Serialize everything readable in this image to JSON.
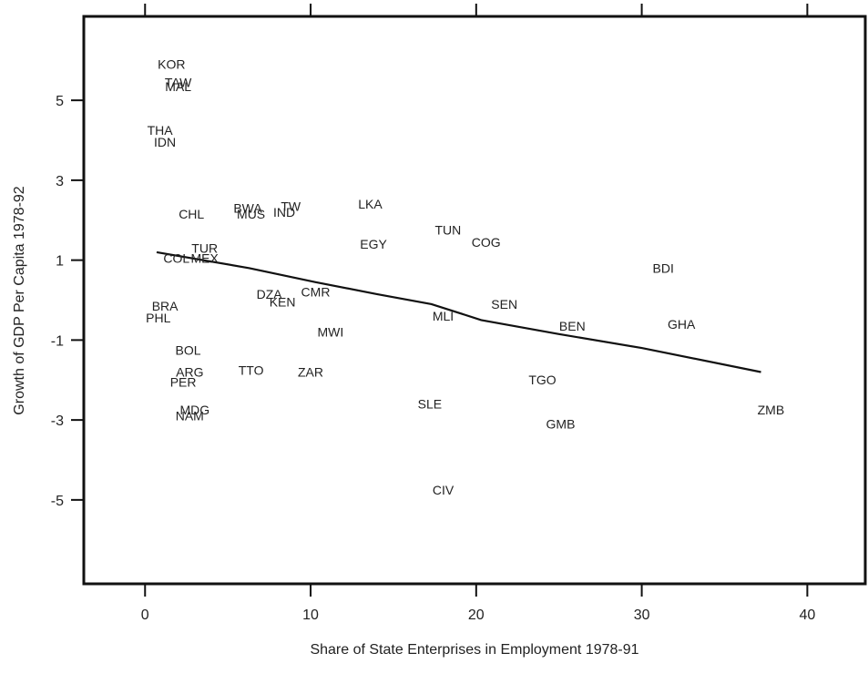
{
  "chart_data": {
    "type": "scatter",
    "title": "",
    "xlabel": "Share of State Enterprises in Employment 1978-91",
    "ylabel": "Growth of GDP Per Capita 1978-92",
    "xlim": [
      -3.7,
      43.5
    ],
    "ylim": [
      -7.1,
      7.1
    ],
    "xticks": [
      0,
      10,
      20,
      30,
      40
    ],
    "yticks": [
      5,
      3,
      1,
      -1,
      -3,
      -5
    ],
    "grid": false,
    "legend": "none",
    "points": [
      {
        "label": "KOR",
        "x": 1.6,
        "y": 5.9
      },
      {
        "label": "TAW",
        "x": 2.0,
        "y": 5.45
      },
      {
        "label": "MAL",
        "x": 2.0,
        "y": 5.35
      },
      {
        "label": "THA",
        "x": 0.9,
        "y": 4.25
      },
      {
        "label": "IDN",
        "x": 1.2,
        "y": 3.95
      },
      {
        "label": "CHL",
        "x": 2.8,
        "y": 2.15
      },
      {
        "label": "BWA",
        "x": 6.2,
        "y": 2.3
      },
      {
        "label": "MUS",
        "x": 6.4,
        "y": 2.15
      },
      {
        "label": "IND",
        "x": 8.4,
        "y": 2.2
      },
      {
        "label": "TW",
        "x": 8.8,
        "y": 2.35
      },
      {
        "label": "LKA",
        "x": 13.6,
        "y": 2.4
      },
      {
        "label": "TUN",
        "x": 18.3,
        "y": 1.75
      },
      {
        "label": "COG",
        "x": 20.6,
        "y": 1.45
      },
      {
        "label": "EGY",
        "x": 13.8,
        "y": 1.4
      },
      {
        "label": "BDI",
        "x": 31.3,
        "y": 0.8
      },
      {
        "label": "TUR",
        "x": 3.6,
        "y": 1.3
      },
      {
        "label": "COL",
        "x": 1.9,
        "y": 1.05
      },
      {
        "label": "MEX",
        "x": 3.6,
        "y": 1.05
      },
      {
        "label": "DZA",
        "x": 7.5,
        "y": 0.15
      },
      {
        "label": "CMR",
        "x": 10.3,
        "y": 0.2
      },
      {
        "label": "KEN",
        "x": 8.3,
        "y": -0.05
      },
      {
        "label": "SEN",
        "x": 21.7,
        "y": -0.1
      },
      {
        "label": "BRA",
        "x": 1.2,
        "y": -0.15
      },
      {
        "label": "PHL",
        "x": 0.8,
        "y": -0.45
      },
      {
        "label": "MLI",
        "x": 18.0,
        "y": -0.4
      },
      {
        "label": "GHA",
        "x": 32.4,
        "y": -0.6
      },
      {
        "label": "BEN",
        "x": 25.8,
        "y": -0.65
      },
      {
        "label": "MWI",
        "x": 11.2,
        "y": -0.8
      },
      {
        "label": "BOL",
        "x": 2.6,
        "y": -1.25
      },
      {
        "label": "TTO",
        "x": 6.4,
        "y": -1.75
      },
      {
        "label": "ZAR",
        "x": 10.0,
        "y": -1.8
      },
      {
        "label": "ARG",
        "x": 2.7,
        "y": -1.8
      },
      {
        "label": "PER",
        "x": 2.3,
        "y": -2.05
      },
      {
        "label": "TGO",
        "x": 24.0,
        "y": -2.0
      },
      {
        "label": "SLE",
        "x": 17.2,
        "y": -2.6
      },
      {
        "label": "MDG",
        "x": 3.0,
        "y": -2.75
      },
      {
        "label": "NAM",
        "x": 2.7,
        "y": -2.9
      },
      {
        "label": "GMB",
        "x": 25.1,
        "y": -3.1
      },
      {
        "label": "ZMB",
        "x": 37.8,
        "y": -2.75
      },
      {
        "label": "CIV",
        "x": 18.0,
        "y": -4.75
      }
    ],
    "fit_line": [
      {
        "x": 0.7,
        "y": 1.2
      },
      {
        "x": 6.3,
        "y": 0.8
      },
      {
        "x": 10.3,
        "y": 0.45
      },
      {
        "x": 14.0,
        "y": 0.15
      },
      {
        "x": 17.3,
        "y": -0.1
      },
      {
        "x": 20.3,
        "y": -0.5
      },
      {
        "x": 25.0,
        "y": -0.85
      },
      {
        "x": 30.0,
        "y": -1.2
      },
      {
        "x": 37.2,
        "y": -1.8
      }
    ],
    "colors": {
      "frame": "#111111",
      "text": "#222222",
      "line": "#111111"
    }
  }
}
